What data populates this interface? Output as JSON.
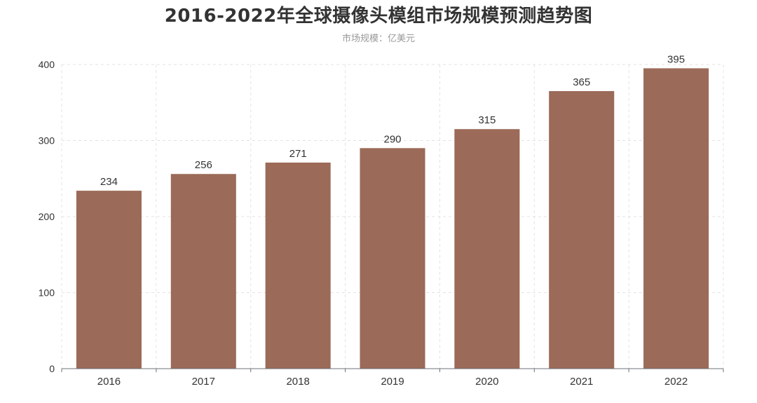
{
  "chart_data": {
    "type": "bar",
    "title": "2016-2022年全球摄像头模组市场规模预测趋势图",
    "subtitle": "市场规模：亿美元",
    "xlabel": "",
    "ylabel": "",
    "categories": [
      "2016",
      "2017",
      "2018",
      "2019",
      "2020",
      "2021",
      "2022"
    ],
    "values": [
      234,
      256,
      271,
      290,
      315,
      365,
      395
    ],
    "ylim": [
      0,
      400
    ],
    "yticks": [
      0,
      100,
      200,
      300,
      400
    ],
    "grid": true,
    "data_labels": true,
    "colors": {
      "bar": "#9b6a58",
      "grid": "#e3e3e3",
      "axis": "#6e7079",
      "label": "#333333"
    }
  }
}
